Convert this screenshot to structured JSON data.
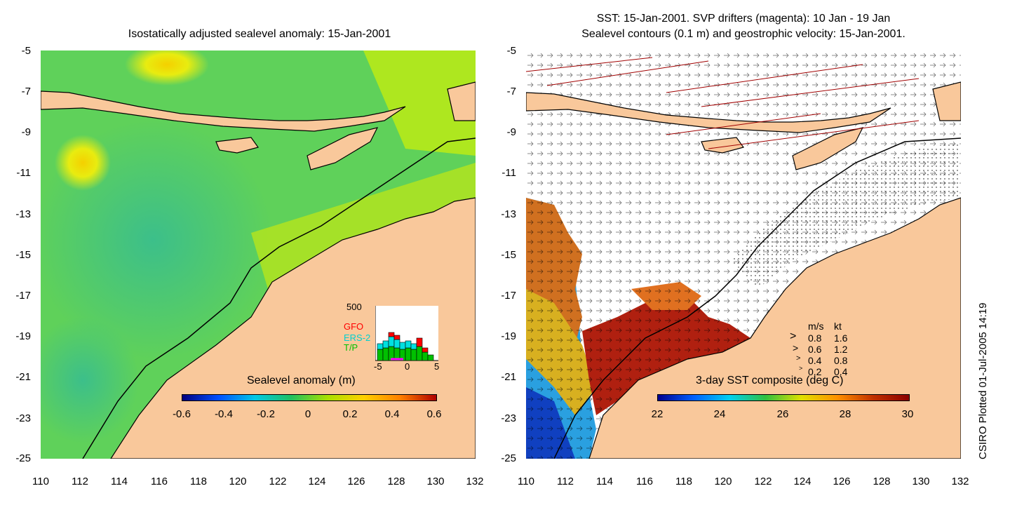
{
  "left_panel": {
    "title": "Isostatically adjusted sealevel anomaly: 15-Jan-2001",
    "colorbar": {
      "title": "Sealevel anomaly (m)",
      "ticks": [
        "-0.6",
        "-0.4",
        "-0.2",
        "0",
        "0.2",
        "0.4",
        "0.6"
      ],
      "colors": [
        "#00007f",
        "#0050ff",
        "#00c8e6",
        "#20c060",
        "#a8e000",
        "#ffd000",
        "#ff8000",
        "#b00000"
      ]
    },
    "inset": {
      "ymax_label": "500",
      "legend": [
        "GFO",
        "ERS-2",
        "T/P"
      ],
      "legend_colors": [
        "#ff0000",
        "#00e0e0",
        "#00c000"
      ],
      "xticks": [
        "-5",
        "0",
        "5"
      ]
    }
  },
  "right_panel": {
    "title_line1": "SST: 15-Jan-2001. SVP drifters (magenta): 10 Jan - 19 Jan",
    "title_line2": "Sealevel contours (0.1 m) and geostrophic velocity: 15-Jan-2001.",
    "colorbar": {
      "title": "3-day SST composite (deg C)",
      "ticks": [
        "22",
        "24",
        "26",
        "28",
        "30"
      ],
      "colors": [
        "#00008f",
        "#0060ff",
        "#00d0f0",
        "#30c040",
        "#e0e000",
        "#ff9000",
        "#c03000",
        "#8b0000"
      ]
    },
    "velocity_legend": {
      "header_ms": "m/s",
      "header_kt": "kt",
      "rows": [
        [
          "0.8",
          "1.6"
        ],
        [
          "0.6",
          "1.2"
        ],
        [
          "0.4",
          "0.8"
        ],
        [
          "0.2",
          "0.4"
        ]
      ]
    }
  },
  "axes": {
    "lat_ticks": [
      "-5",
      "-7",
      "-9",
      "-11",
      "-13",
      "-15",
      "-17",
      "-19",
      "-21",
      "-23",
      "-25"
    ],
    "lon_ticks": [
      "110",
      "112",
      "114",
      "116",
      "118",
      "120",
      "122",
      "124",
      "126",
      "128",
      "130",
      "132"
    ]
  },
  "colors": {
    "land": "#f9c89b",
    "coast": "#000000",
    "ocean_white": "#ffffff"
  },
  "credit": "CSIRO Plotted 01-Jul-2005 14:19"
}
